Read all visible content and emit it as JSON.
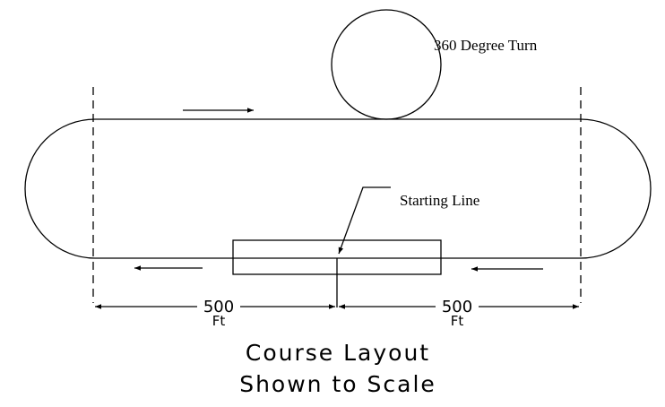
{
  "diagram": {
    "turn_label": "360 Degree Turn",
    "start_label": "Starting Line",
    "left_distance": "500",
    "left_unit": "Ft",
    "right_distance": "500",
    "right_unit": "Ft",
    "caption_line1": "Course Layout",
    "caption_line2": "Shown to Scale",
    "line_color": "#000000",
    "background_color": "#ffffff"
  }
}
